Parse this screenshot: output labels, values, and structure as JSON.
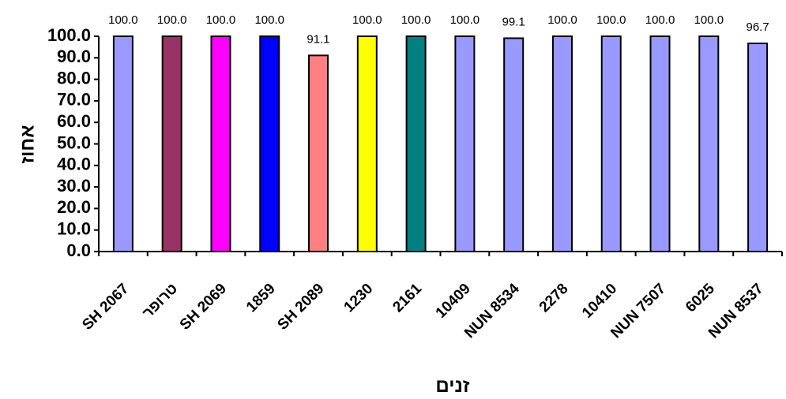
{
  "chart_data": {
    "type": "bar",
    "categories": [
      "SH 2067",
      "טרופר",
      "SH 2069",
      "1859",
      "SH 2089",
      "1230",
      "2161",
      "10409",
      "NUN 8534",
      "2278",
      "10410",
      "NUN 7507",
      "6025",
      "NUN 8537"
    ],
    "values": [
      100.0,
      100.0,
      100.0,
      100.0,
      91.1,
      100.0,
      100.0,
      100.0,
      99.1,
      100.0,
      100.0,
      100.0,
      100.0,
      96.7
    ],
    "data_labels": [
      "100.0",
      "100.0",
      "100.0",
      "100.0",
      "91.1",
      "100.0",
      "100.0",
      "100.0",
      "99.1",
      "100.0",
      "100.0",
      "100.0",
      "100.0",
      "96.7"
    ],
    "colors": [
      "#9999ff",
      "#993366",
      "#ff00ff",
      "#0000ff",
      "#ff8080",
      "#ffff00",
      "#008080",
      "#9999ff",
      "#9999ff",
      "#9999ff",
      "#9999ff",
      "#9999ff",
      "#9999ff",
      "#9999ff"
    ],
    "ylabel": "אחוז",
    "xlabel": "זנים",
    "ylim": [
      0,
      100
    ],
    "yticks": [
      "0.0",
      "10.0",
      "20.0",
      "30.0",
      "40.0",
      "50.0",
      "60.0",
      "70.0",
      "80.0",
      "90.0",
      "100.0"
    ],
    "grid": false,
    "legend": "none"
  }
}
